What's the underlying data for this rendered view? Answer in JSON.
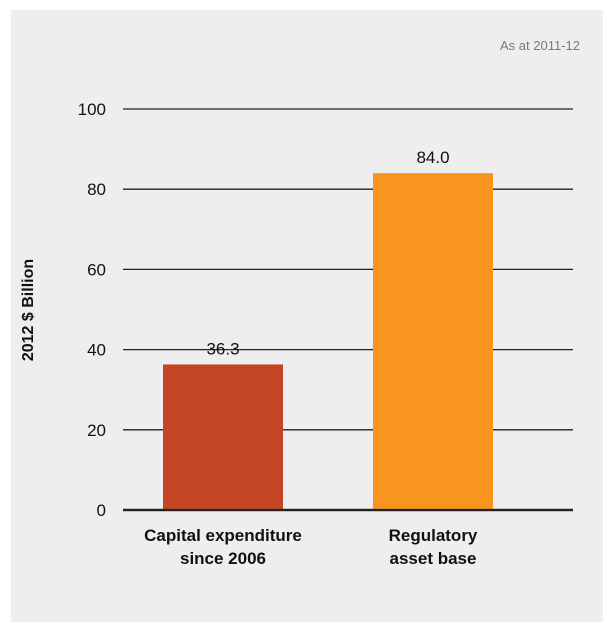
{
  "note": "As at 2011-12",
  "colors": {
    "panel_background": "#eeeeee",
    "gridline": "#222222",
    "capex_bar": "#c44627",
    "rab_bar": "#f7951e"
  },
  "chart_data": {
    "type": "bar",
    "title": "",
    "xlabel": "",
    "ylabel": "2012 $ Billion",
    "ylim": [
      0,
      100
    ],
    "yticks": [
      0,
      20,
      40,
      60,
      80,
      100
    ],
    "grid": true,
    "categories": [
      "Capital expenditure since 2006",
      "Regulatory asset base"
    ],
    "category_lines": [
      [
        "Capital expenditure",
        "since 2006"
      ],
      [
        "Regulatory",
        "asset base"
      ]
    ],
    "values": [
      36.3,
      84.0
    ],
    "value_labels": [
      "36.3",
      "84.0"
    ],
    "bar_colors": [
      "#c44627",
      "#f7951e"
    ]
  }
}
